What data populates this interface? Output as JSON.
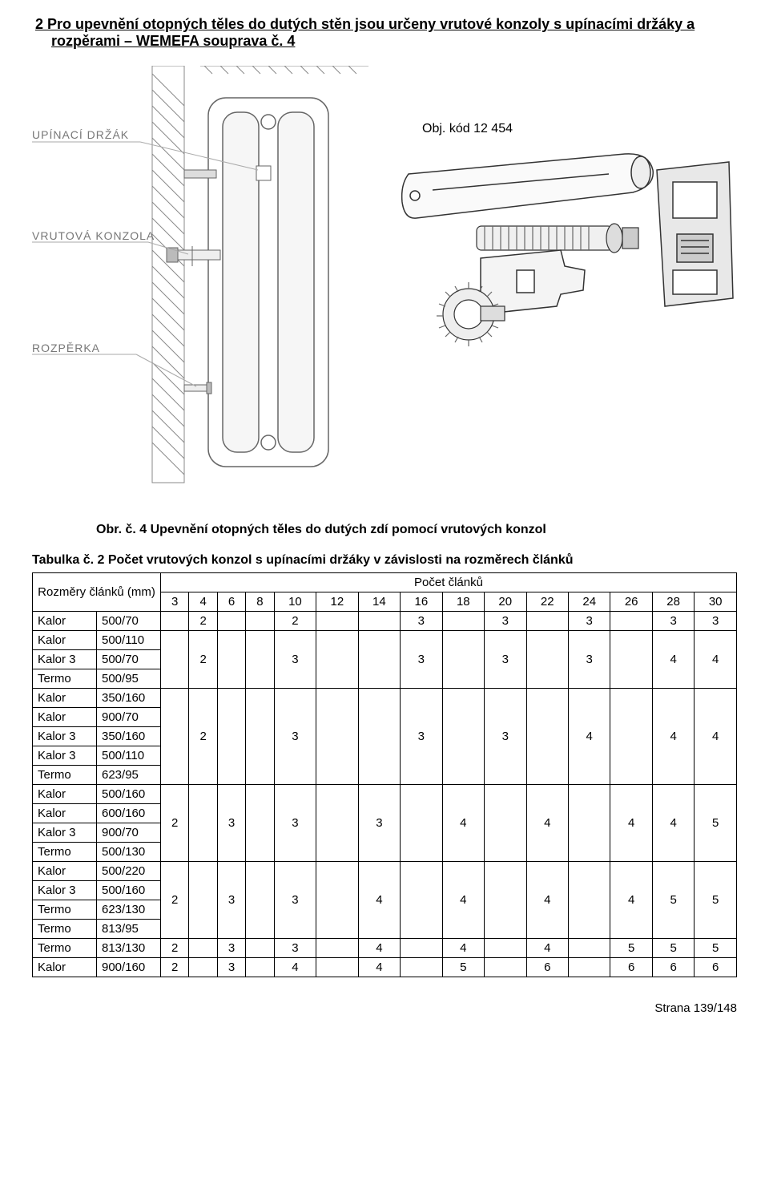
{
  "heading": "2  Pro upevnění otopných těles do dutých stěn jsou určeny vrutové konzoly s upínacími držáky a rozpěrami – WEMEFA souprava č. 4",
  "diagram": {
    "labels": {
      "upinaci": "UPÍNACÍ DRŽÁK",
      "vrutova": "VRUTOVÁ KONZOLA",
      "rozperka": "ROZPĚRKA"
    },
    "obj_kod": "Obj. kód 12 454",
    "colors": {
      "line": "#555555",
      "fill_light": "#f4f4f4",
      "fill_dark": "#999999",
      "text_label": "#888888"
    }
  },
  "figure_caption": "Obr. č. 4   Upevnění otopných těles do dutých zdí pomocí vrutových konzol",
  "table": {
    "caption": "Tabulka č. 2  Počet vrutových konzol s upínacími držáky v závislosti na rozměrech článků",
    "row_header": "Rozměry článků (mm)",
    "count_header": "Počet článků",
    "columns": [
      "3",
      "4",
      "6",
      "8",
      "10",
      "12",
      "14",
      "16",
      "18",
      "20",
      "22",
      "24",
      "26",
      "28",
      "30"
    ],
    "groups": [
      {
        "rows": [
          [
            "Kalor",
            "500/70"
          ]
        ],
        "values": [
          "",
          "2",
          "",
          "",
          "2",
          "",
          "",
          "3",
          "",
          "3",
          "",
          "3",
          "",
          "3",
          "3"
        ]
      },
      {
        "rows": [
          [
            "Kalor",
            "500/110"
          ],
          [
            "Kalor 3",
            "500/70"
          ],
          [
            "Termo",
            "500/95"
          ]
        ],
        "values": [
          "",
          "2",
          "",
          "",
          "3",
          "",
          "",
          "3",
          "",
          "3",
          "",
          "3",
          "",
          "4",
          "4"
        ]
      },
      {
        "rows": [
          [
            "Kalor",
            "350/160"
          ],
          [
            "Kalor",
            "900/70"
          ],
          [
            "Kalor 3",
            "350/160"
          ],
          [
            "Kalor 3",
            "500/110"
          ],
          [
            "Termo",
            "623/95"
          ]
        ],
        "values": [
          "",
          "2",
          "",
          "",
          "3",
          "",
          "",
          "3",
          "",
          "3",
          "",
          "4",
          "",
          "4",
          "4"
        ]
      },
      {
        "rows": [
          [
            "Kalor",
            "500/160"
          ],
          [
            "Kalor",
            "600/160"
          ],
          [
            "Kalor 3",
            "900/70"
          ],
          [
            "Termo",
            "500/130"
          ]
        ],
        "values": [
          "2",
          "",
          "3",
          "",
          "3",
          "",
          "3",
          "",
          "4",
          "",
          "4",
          "",
          "4",
          "4",
          "5"
        ]
      },
      {
        "rows": [
          [
            "Kalor",
            "500/220"
          ],
          [
            "Kalor 3",
            "500/160"
          ],
          [
            "Termo",
            "623/130"
          ],
          [
            "Termo",
            "813/95"
          ]
        ],
        "values": [
          "2",
          "",
          "3",
          "",
          "3",
          "",
          "4",
          "",
          "4",
          "",
          "4",
          "",
          "4",
          "5",
          "5"
        ]
      },
      {
        "rows": [
          [
            "Termo",
            "813/130"
          ]
        ],
        "values": [
          "2",
          "",
          "3",
          "",
          "3",
          "",
          "4",
          "",
          "4",
          "",
          "4",
          "",
          "5",
          "5",
          "5"
        ]
      },
      {
        "rows": [
          [
            "Kalor",
            "900/160"
          ]
        ],
        "values": [
          "2",
          "",
          "3",
          "",
          "4",
          "",
          "4",
          "",
          "5",
          "",
          "6",
          "",
          "6",
          "6",
          "6"
        ]
      }
    ]
  },
  "footer": "Strana 139/148"
}
